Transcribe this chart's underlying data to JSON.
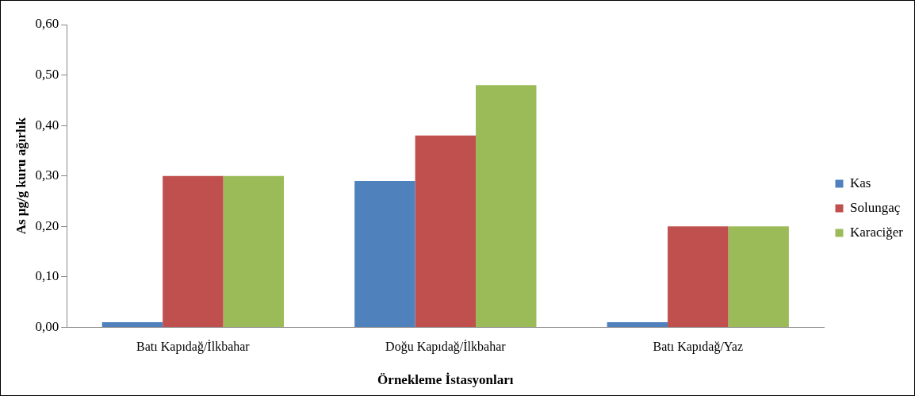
{
  "chart_data": {
    "type": "bar",
    "xlabel": "Örnekleme İstasyonları",
    "ylabel": "As µg/g kuru ağırlık",
    "categories": [
      "Batı Kapıdağ/İlkbahar",
      "Doğu Kapıdağ/İlkbahar",
      "Batı Kapıdağ/Yaz"
    ],
    "series": [
      {
        "name": "Kas",
        "color": "#4f81bd",
        "values": [
          0.01,
          0.29,
          0.01
        ]
      },
      {
        "name": "Solungaç",
        "color": "#c0504d",
        "values": [
          0.3,
          0.38,
          0.2
        ]
      },
      {
        "name": "Karaciğer",
        "color": "#9bbb59",
        "values": [
          0.3,
          0.48,
          0.2
        ]
      }
    ],
    "ylim": [
      0,
      0.6
    ],
    "yticks": [
      {
        "value": 0,
        "label": "0,00"
      },
      {
        "value": 0.1,
        "label": "0,10"
      },
      {
        "value": 0.2,
        "label": "0,20"
      },
      {
        "value": 0.3,
        "label": "0,30"
      },
      {
        "value": 0.4,
        "label": "0,40"
      },
      {
        "value": 0.5,
        "label": "0,50"
      },
      {
        "value": 0.6,
        "label": "0,60"
      }
    ],
    "grid": false,
    "legend": "right"
  }
}
